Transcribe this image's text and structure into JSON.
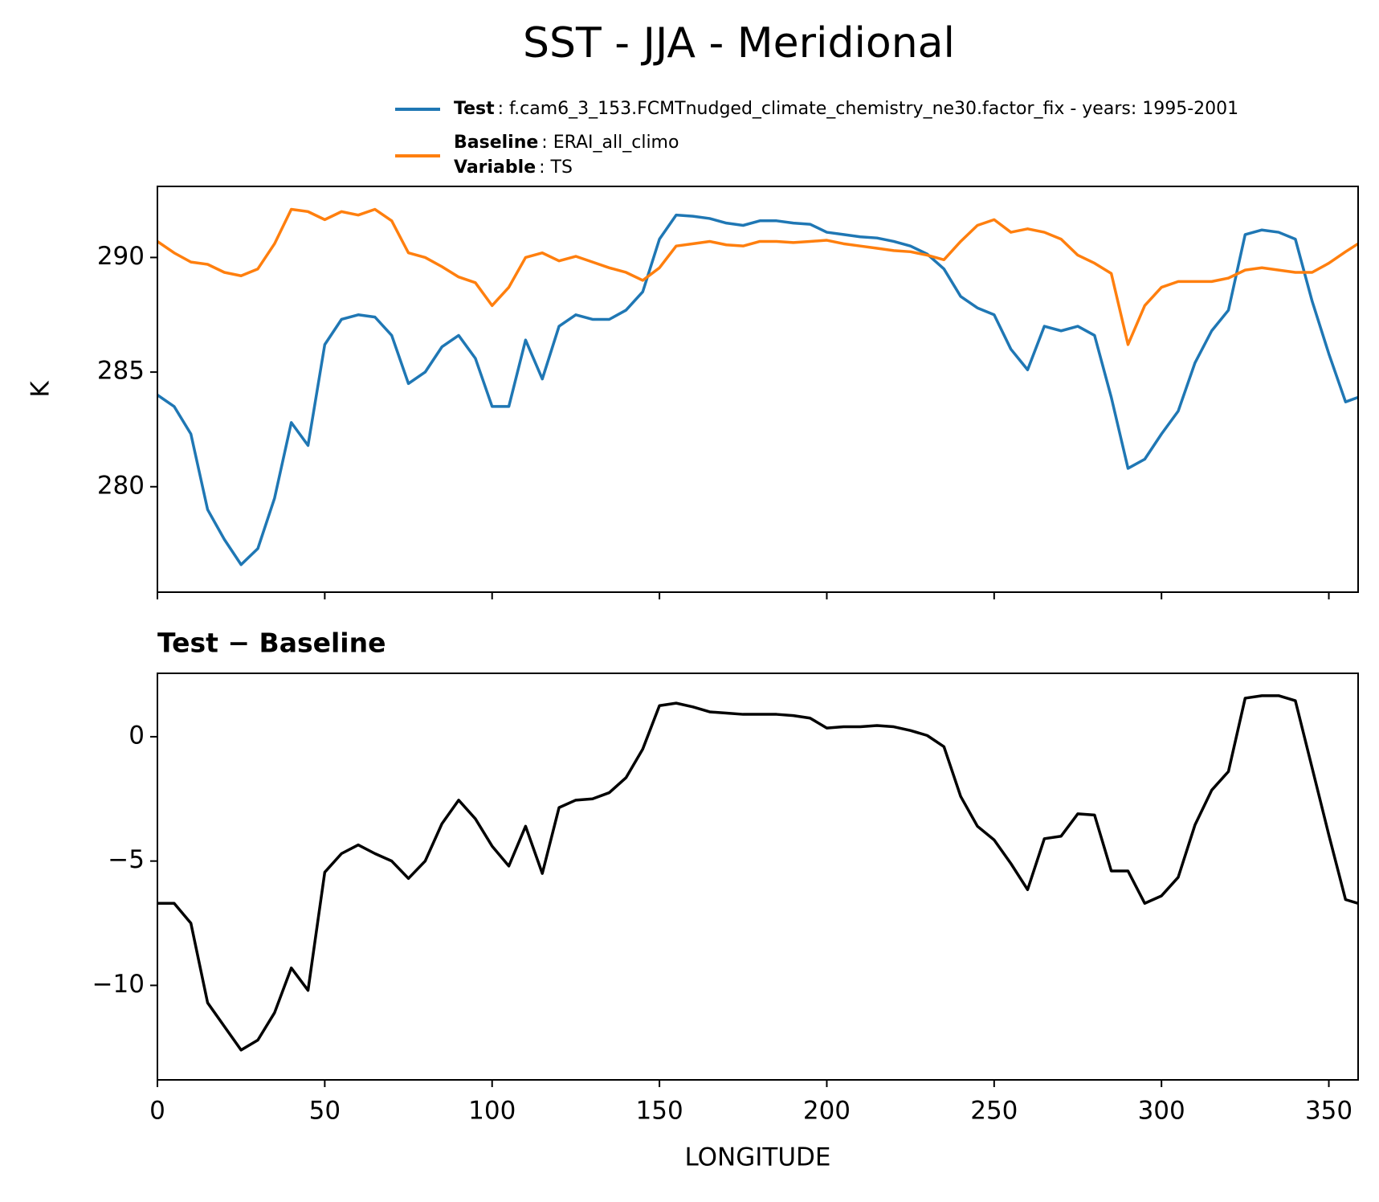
{
  "chart_data": [
    {
      "type": "line",
      "title": "SST - JJA - Meridional",
      "ylabel": "K",
      "x": [
        0,
        5,
        10,
        15,
        20,
        25,
        30,
        35,
        40,
        45,
        50,
        55,
        60,
        65,
        70,
        75,
        80,
        85,
        90,
        95,
        100,
        105,
        110,
        115,
        120,
        125,
        130,
        135,
        140,
        145,
        150,
        155,
        160,
        165,
        170,
        175,
        180,
        185,
        190,
        195,
        200,
        205,
        210,
        215,
        220,
        225,
        230,
        235,
        240,
        245,
        250,
        255,
        260,
        265,
        270,
        275,
        280,
        285,
        290,
        295,
        300,
        305,
        310,
        315,
        320,
        325,
        330,
        335,
        340,
        345,
        350,
        355,
        358.75
      ],
      "series": [
        {
          "name": "Test",
          "info": ": f.cam6_3_153.FCMTnudged_climate_chemistry_ne30.factor_fix - years: 1995-2001",
          "color": "#1f77b4",
          "values": [
            284.0,
            283.5,
            282.3,
            279.0,
            277.7,
            276.6,
            277.3,
            279.5,
            282.8,
            281.8,
            286.2,
            287.3,
            287.5,
            287.4,
            286.6,
            284.5,
            285.0,
            286.1,
            286.6,
            285.6,
            283.5,
            283.5,
            286.4,
            284.7,
            287.0,
            287.5,
            287.3,
            287.3,
            287.7,
            288.5,
            290.8,
            291.85,
            291.8,
            291.7,
            291.5,
            291.4,
            291.6,
            291.6,
            291.5,
            291.45,
            291.1,
            291.0,
            290.9,
            290.85,
            290.7,
            290.5,
            290.15,
            289.5,
            288.3,
            287.8,
            287.5,
            286.0,
            285.1,
            287.0,
            286.8,
            287.0,
            286.6,
            283.9,
            280.8,
            281.2,
            282.3,
            283.3,
            285.4,
            286.8,
            287.7,
            291.0,
            291.2,
            291.1,
            290.8,
            288.1,
            285.8,
            283.7,
            283.9
          ]
        },
        {
          "name": "Baseline",
          "info": ": ERAI_all_climo",
          "color": "#ff7f0e",
          "values": [
            290.7,
            290.2,
            289.8,
            289.7,
            289.35,
            289.2,
            289.5,
            290.6,
            292.1,
            292.0,
            291.65,
            292.0,
            291.85,
            292.1,
            291.6,
            290.2,
            290.0,
            289.6,
            289.15,
            288.9,
            287.9,
            288.7,
            290.0,
            290.2,
            289.85,
            290.05,
            289.8,
            289.55,
            289.35,
            289.0,
            289.55,
            290.5,
            290.6,
            290.7,
            290.55,
            290.5,
            290.7,
            290.7,
            290.65,
            290.7,
            290.75,
            290.6,
            290.5,
            290.4,
            290.3,
            290.25,
            290.1,
            289.9,
            290.7,
            291.4,
            291.65,
            291.1,
            291.25,
            291.1,
            290.8,
            290.1,
            289.75,
            289.3,
            286.2,
            287.9,
            288.7,
            288.95,
            288.95,
            288.95,
            289.1,
            289.45,
            289.55,
            289.45,
            289.35,
            289.35,
            289.75,
            290.25,
            290.6
          ]
        }
      ],
      "variable": {
        "label": "Variable",
        "info": ": TS"
      },
      "xlim": [
        0,
        358.75
      ],
      "xticks": [
        0,
        50,
        100,
        150,
        200,
        250,
        300,
        350
      ],
      "ylim": [
        275.4,
        293.1
      ],
      "yticks": [
        280,
        285,
        290
      ]
    },
    {
      "type": "line",
      "title": "Test − Baseline",
      "xlabel": "LONGITUDE",
      "x": [
        0,
        5,
        10,
        15,
        20,
        25,
        30,
        35,
        40,
        45,
        50,
        55,
        60,
        65,
        70,
        75,
        80,
        85,
        90,
        95,
        100,
        105,
        110,
        115,
        120,
        125,
        130,
        135,
        140,
        145,
        150,
        155,
        160,
        165,
        170,
        175,
        180,
        185,
        190,
        195,
        200,
        205,
        210,
        215,
        220,
        225,
        230,
        235,
        240,
        245,
        250,
        255,
        260,
        265,
        270,
        275,
        280,
        285,
        290,
        295,
        300,
        305,
        310,
        315,
        320,
        325,
        330,
        335,
        340,
        345,
        350,
        355,
        358.75
      ],
      "series": [
        {
          "color": "#000000",
          "values": [
            -6.7,
            -6.7,
            -7.5,
            -10.7,
            -11.65,
            -12.6,
            -12.2,
            -11.1,
            -9.3,
            -10.2,
            -5.45,
            -4.7,
            -4.35,
            -4.7,
            -5.0,
            -5.7,
            -5.0,
            -3.5,
            -2.55,
            -3.3,
            -4.4,
            -5.2,
            -3.6,
            -5.5,
            -2.85,
            -2.55,
            -2.5,
            -2.25,
            -1.65,
            -0.5,
            1.25,
            1.35,
            1.2,
            1.0,
            0.95,
            0.9,
            0.9,
            0.9,
            0.85,
            0.75,
            0.35,
            0.4,
            0.4,
            0.45,
            0.4,
            0.25,
            0.05,
            -0.4,
            -2.4,
            -3.6,
            -4.15,
            -5.1,
            -6.15,
            -4.1,
            -4.0,
            -3.1,
            -3.15,
            -5.4,
            -5.4,
            -6.7,
            -6.4,
            -5.65,
            -3.55,
            -2.15,
            -1.4,
            1.55,
            1.65,
            1.65,
            1.45,
            -1.25,
            -3.95,
            -6.55,
            -6.7
          ]
        }
      ],
      "xlim": [
        0,
        358.75
      ],
      "xticks": [
        0,
        50,
        100,
        150,
        200,
        250,
        300,
        350
      ],
      "ylim": [
        -13.8,
        2.55
      ],
      "yticks": [
        {
          "value": -10,
          "label": "−10"
        },
        {
          "value": -5,
          "label": "−5"
        },
        0
      ]
    }
  ]
}
